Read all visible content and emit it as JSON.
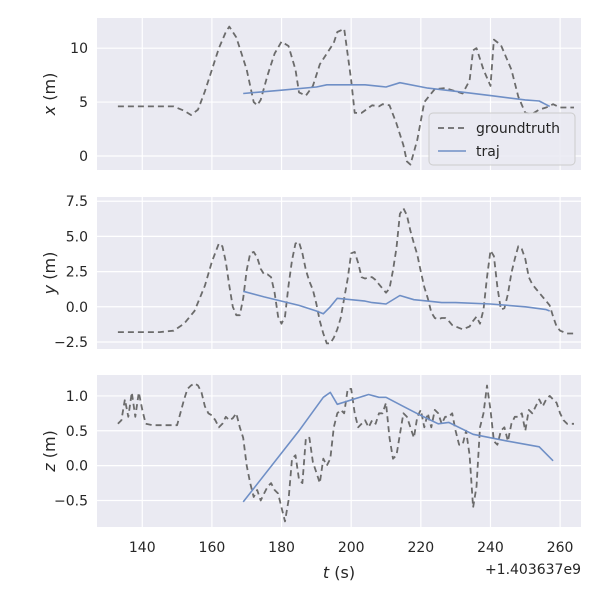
{
  "chart_data": {
    "type": "line",
    "x_offset_label": "+1.403637e9",
    "xlabel": "t (s)",
    "xticks": [
      140,
      160,
      180,
      200,
      220,
      240,
      260
    ],
    "xlim": [
      127,
      266
    ],
    "legend": {
      "placement": "lower-right",
      "entries": [
        "groundtruth",
        "traj"
      ]
    },
    "colors": {
      "groundtruth": "#6b6b6b",
      "traj": "#6f8fc6",
      "plot_bg": "#eaeaf2",
      "grid": "#ffffff"
    },
    "panels": [
      {
        "ylabel": "x (m)",
        "ylim": [
          -1.3,
          12.8
        ],
        "yticks": [
          0,
          5,
          10
        ],
        "series": [
          {
            "name": "groundtruth",
            "x": [
              133,
              140,
              145,
              149,
              152,
              154,
              156,
              158,
              160,
              162,
              164,
              165,
              167,
              168,
              170,
              172,
              173,
              174,
              176,
              178,
              180,
              182,
              184,
              185,
              187,
              189,
              191,
              193,
              195,
              196,
              198,
              200,
              201,
              203,
              206,
              208,
              209,
              211,
              213,
              215,
              216,
              217,
              219,
              221,
              224,
              227,
              230,
              232,
              234,
              235,
              236,
              238,
              240,
              241,
              243,
              246,
              248,
              250,
              252,
              254,
              256,
              258,
              260,
              264
            ],
            "y": [
              4.6,
              4.6,
              4.6,
              4.6,
              4.2,
              3.8,
              4.3,
              6.0,
              8.0,
              10.0,
              11.5,
              12.0,
              11.0,
              10.0,
              8.0,
              5.0,
              4.7,
              5.2,
              7.5,
              9.5,
              10.6,
              10.2,
              8.0,
              5.9,
              5.6,
              6.5,
              8.5,
              9.5,
              10.5,
              11.5,
              11.8,
              7.0,
              4.0,
              4.0,
              4.7,
              4.6,
              4.8,
              4.7,
              3.0,
              1.0,
              -0.5,
              -0.8,
              1.5,
              5.0,
              6.2,
              6.3,
              6.0,
              5.8,
              7.0,
              9.8,
              10.0,
              8.0,
              6.5,
              10.8,
              10.3,
              8.0,
              5.5,
              4.0,
              3.9,
              4.3,
              4.5,
              4.8,
              4.5,
              4.5
            ]
          },
          {
            "name": "traj",
            "x": [
              169,
              180,
              190,
              193,
              196,
              204,
              210,
              214,
              222,
              230,
              240,
              250,
              254,
              257
            ],
            "y": [
              5.8,
              6.1,
              6.4,
              6.6,
              6.6,
              6.6,
              6.4,
              6.8,
              6.3,
              6.0,
              5.6,
              5.2,
              5.1,
              4.6
            ]
          }
        ]
      },
      {
        "ylabel": "y (m)",
        "ylim": [
          -3.0,
          7.8
        ],
        "yticks": [
          -2.5,
          0.0,
          2.5,
          5.0,
          7.5
        ],
        "series": [
          {
            "name": "groundtruth",
            "x": [
              133,
              140,
              145,
              149,
              152,
              155,
              158,
              160,
              162,
              163,
              164,
              165,
              166,
              167,
              168,
              169,
              170,
              171,
              172,
              173,
              174,
              175,
              176,
              177,
              178,
              179,
              180,
              181,
              182,
              183,
              184,
              185,
              186,
              187,
              188,
              189,
              190,
              191,
              192,
              193,
              194,
              195,
              196,
              197,
              198,
              199,
              200,
              201,
              202,
              203,
              204,
              205,
              206,
              207,
              208,
              209,
              210,
              211,
              212,
              213,
              214,
              215,
              216,
              217,
              218,
              219,
              220,
              221,
              222,
              223,
              224,
              225,
              226,
              227,
              228,
              229,
              230,
              231,
              232,
              233,
              234,
              235,
              236,
              237,
              238,
              239,
              240,
              241,
              242,
              243,
              244,
              245,
              246,
              247,
              248,
              249,
              250,
              251,
              252,
              253,
              254,
              255,
              256,
              257,
              258,
              259,
              260,
              261,
              262,
              263,
              264
            ],
            "y": [
              -1.8,
              -1.8,
              -1.8,
              -1.7,
              -1.2,
              -0.3,
              1.5,
              3.2,
              4.5,
              4.3,
              3.2,
              1.5,
              0.0,
              -0.6,
              -0.6,
              0.6,
              2.6,
              3.8,
              3.9,
              3.5,
              2.7,
              2.3,
              2.3,
              2.1,
              1.0,
              -0.7,
              -1.2,
              -0.7,
              1.5,
              3.3,
              4.5,
              4.6,
              3.8,
              2.6,
              1.8,
              1.2,
              0.2,
              -1.0,
              -1.9,
              -2.6,
              -2.6,
              -2.2,
              -1.6,
              -0.8,
              0.6,
              2.0,
              3.8,
              3.9,
              3.1,
              2.1,
              2.0,
              2.1,
              2.1,
              1.9,
              1.6,
              1.3,
              1.0,
              1.3,
              2.6,
              4.2,
              6.6,
              7.0,
              6.5,
              5.4,
              4.5,
              3.7,
              2.5,
              1.4,
              0.6,
              -0.4,
              -0.8,
              -0.9,
              -0.8,
              -0.8,
              -1.0,
              -1.3,
              -1.4,
              -1.5,
              -1.6,
              -1.5,
              -1.4,
              -1.0,
              -0.7,
              -1.2,
              -0.2,
              2.1,
              4.0,
              3.6,
              1.4,
              -0.2,
              -0.1,
              0.9,
              2.4,
              3.4,
              4.3,
              4.1,
              3.4,
              2.1,
              1.6,
              1.3,
              1.0,
              0.7,
              0.4,
              0.1,
              -0.7,
              -1.4,
              -1.7,
              -1.8,
              -1.9,
              -1.9,
              -1.9
            ]
          },
          {
            "name": "traj",
            "x": [
              169,
              175,
              180,
              185,
              190,
              192,
              194,
              196,
              200,
              204,
              206,
              210,
              214,
              218,
              222,
              226,
              230,
              240,
              250,
              256,
              257
            ],
            "y": [
              1.1,
              0.7,
              0.4,
              0.1,
              -0.3,
              -0.5,
              0.0,
              0.6,
              0.5,
              0.4,
              0.3,
              0.2,
              0.8,
              0.5,
              0.4,
              0.3,
              0.3,
              0.2,
              0.0,
              -0.2,
              -0.3
            ]
          }
        ]
      },
      {
        "ylabel": "z (m)",
        "ylim": [
          -0.88,
          1.3
        ],
        "yticks": [
          -0.5,
          0.0,
          0.5,
          1.0
        ],
        "series": [
          {
            "name": "groundtruth",
            "x": [
              133,
              134,
              135,
              136,
              137,
              138,
              139,
              140,
              141,
              143,
              145,
              150,
              152,
              153,
              154,
              155,
              156,
              157,
              158,
              159,
              160,
              161,
              162,
              163,
              164,
              165,
              166,
              167,
              168,
              169,
              170,
              171,
              172,
              173,
              174,
              175,
              176,
              177,
              178,
              179,
              180,
              181,
              182,
              183,
              184,
              185,
              186,
              187,
              188,
              189,
              190,
              191,
              192,
              193,
              194,
              195,
              196,
              197,
              198,
              199,
              200,
              201,
              202,
              203,
              204,
              205,
              206,
              207,
              208,
              209,
              210,
              211,
              212,
              213,
              214,
              215,
              216,
              217,
              218,
              219,
              220,
              221,
              222,
              223,
              224,
              225,
              226,
              227,
              228,
              229,
              230,
              231,
              232,
              233,
              234,
              235,
              236,
              237,
              238,
              239,
              240,
              241,
              242,
              243,
              244,
              245,
              246,
              247,
              248,
              249,
              250,
              251,
              252,
              253,
              254,
              255,
              256,
              257,
              258,
              259,
              260,
              261,
              262,
              263,
              264
            ],
            "y": [
              0.6,
              0.65,
              0.95,
              0.7,
              1.05,
              0.7,
              1.05,
              0.8,
              0.6,
              0.58,
              0.58,
              0.58,
              0.95,
              1.1,
              1.15,
              1.18,
              1.15,
              1.05,
              0.85,
              0.75,
              0.72,
              0.65,
              0.55,
              0.6,
              0.7,
              0.65,
              0.68,
              0.75,
              0.55,
              0.4,
              0.0,
              -0.25,
              -0.45,
              -0.35,
              -0.5,
              -0.4,
              -0.3,
              -0.25,
              -0.35,
              -0.4,
              -0.6,
              -0.8,
              -0.5,
              0.1,
              0.15,
              -0.2,
              -0.25,
              0.4,
              0.4,
              0.05,
              -0.1,
              -0.25,
              0.1,
              0.0,
              0.1,
              0.55,
              0.75,
              0.8,
              0.75,
              1.1,
              1.1,
              0.75,
              0.55,
              0.6,
              0.65,
              0.55,
              0.65,
              0.6,
              0.75,
              0.75,
              0.9,
              0.4,
              0.1,
              0.15,
              0.45,
              0.75,
              0.7,
              0.55,
              0.4,
              0.7,
              0.8,
              0.55,
              0.75,
              0.55,
              0.8,
              0.75,
              0.6,
              0.7,
              0.7,
              0.75,
              0.5,
              0.3,
              0.3,
              0.5,
              0.15,
              -0.6,
              -0.3,
              0.55,
              0.75,
              1.15,
              0.8,
              0.35,
              0.3,
              0.5,
              0.55,
              0.35,
              0.6,
              0.7,
              0.7,
              0.75,
              0.5,
              0.8,
              0.75,
              0.85,
              0.95,
              0.85,
              0.95,
              1.0,
              0.95,
              0.9,
              0.75,
              0.65,
              0.6,
              0.6,
              0.6
            ]
          },
          {
            "name": "traj",
            "x": [
              169,
              185,
              192,
              194,
              196,
              205,
              208,
              210,
              215,
              220,
              225,
              228,
              235,
              245,
              254,
              258
            ],
            "y": [
              -0.52,
              0.5,
              0.98,
              1.05,
              0.88,
              1.02,
              0.98,
              0.98,
              0.85,
              0.72,
              0.6,
              0.62,
              0.45,
              0.35,
              0.27,
              0.07
            ]
          }
        ]
      }
    ]
  }
}
